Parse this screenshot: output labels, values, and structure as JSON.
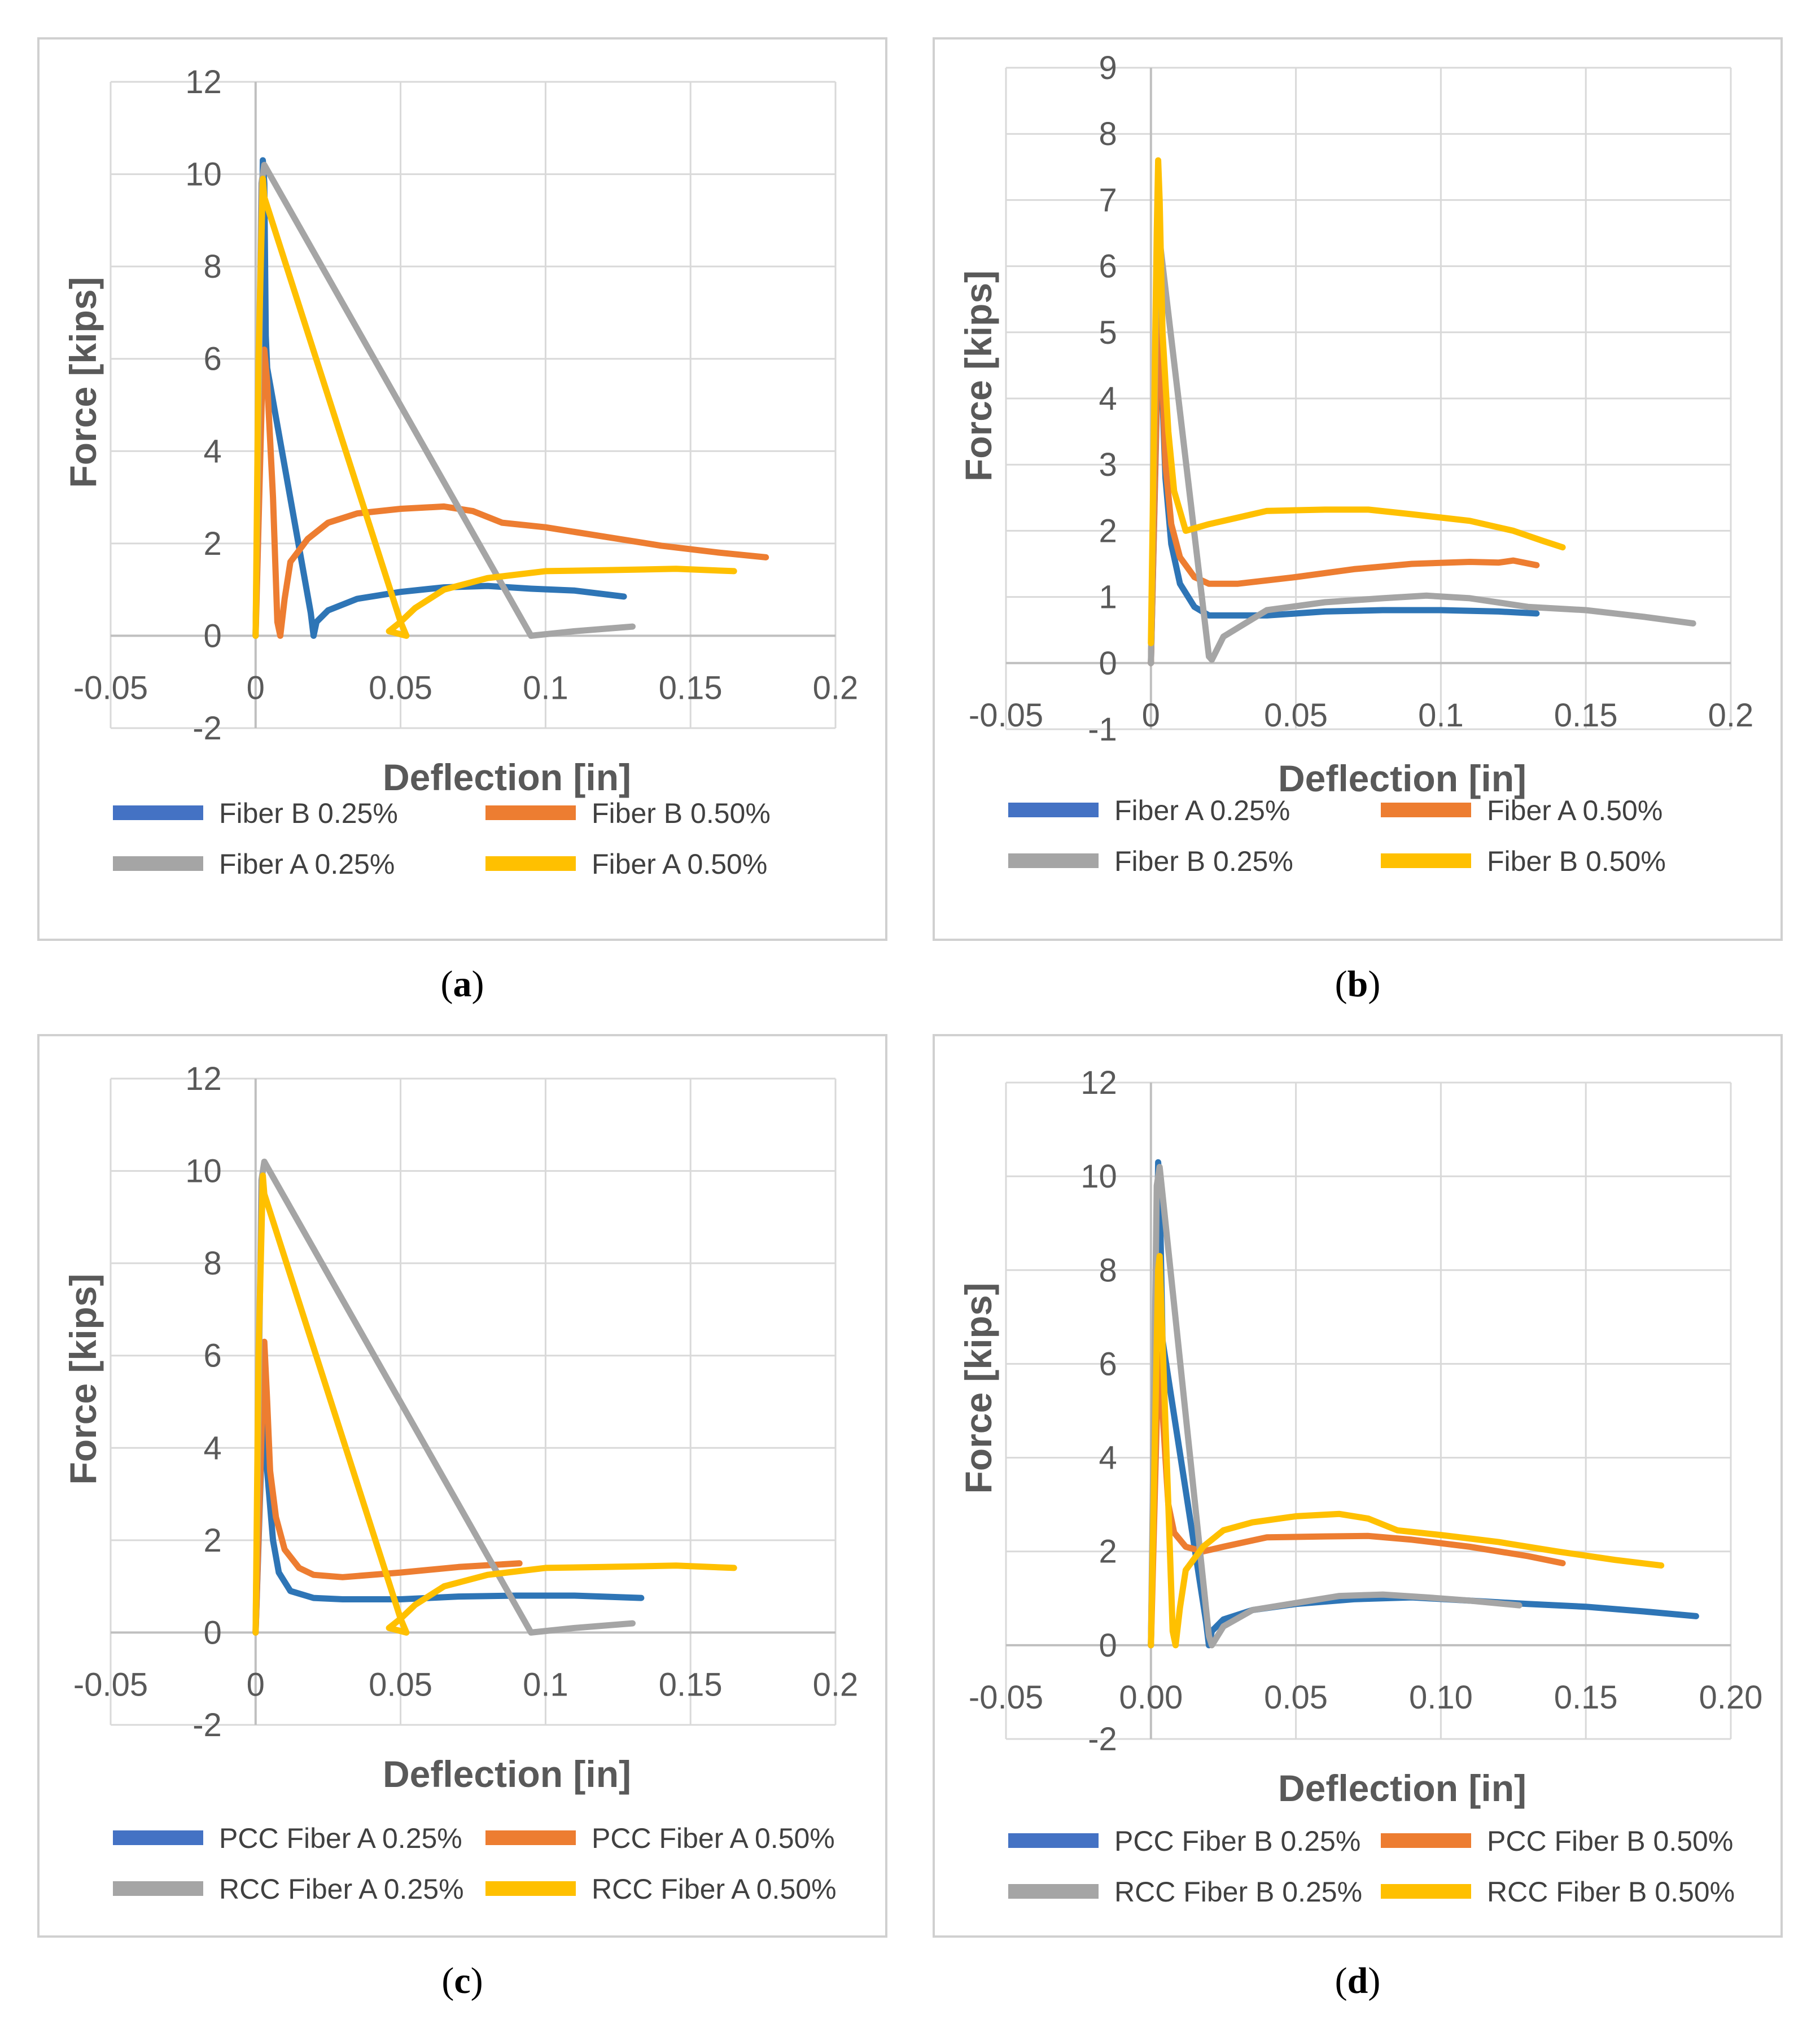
{
  "colors": {
    "blue": "#4472C4",
    "orange": "#ED7D31",
    "gray": "#A5A5A5",
    "yellow": "#FFC000",
    "grid": "#d9d9d9",
    "axis": "#bfbfbf"
  },
  "chart_data": [
    {
      "panel_id": "a",
      "caption": "a",
      "type": "line",
      "xlabel": "Deflection [in]",
      "ylabel": "Force [kips]",
      "xlim": [
        -0.05,
        0.2
      ],
      "ylim": [
        -2,
        12
      ],
      "xticks": [
        -0.05,
        0,
        0.05,
        0.1,
        0.15,
        0.2
      ],
      "xtick_labels": [
        "-0.05",
        "0",
        "0.05",
        "0.1",
        "0.15",
        "0.2"
      ],
      "yticks": [
        -2,
        0,
        2,
        4,
        6,
        8,
        10,
        12
      ],
      "ytick_labels": [
        "-2",
        "0",
        "2",
        "4",
        "6",
        "8",
        "10",
        "12"
      ],
      "grid": true,
      "legend_position": "bottom",
      "series": [
        {
          "name": "Fiber B 0.25%",
          "color": "#4472C4",
          "line": "#2E75B6",
          "x": [
            0,
            0.002,
            0.0025,
            0.003,
            0.0035,
            0.004,
            0.019,
            0.02,
            0.021,
            0.025,
            0.035,
            0.05,
            0.065,
            0.08,
            0.095,
            0.11,
            0.127
          ],
          "y": [
            0,
            8,
            10.3,
            9.8,
            6.5,
            5.8,
            0.5,
            0,
            0.3,
            0.55,
            0.8,
            0.95,
            1.05,
            1.08,
            1.02,
            0.98,
            0.85
          ]
        },
        {
          "name": "Fiber B 0.50%",
          "color": "#ED7D31",
          "x": [
            0,
            0.0025,
            0.003,
            0.004,
            0.006,
            0.0075,
            0.0085,
            0.01,
            0.012,
            0.018,
            0.025,
            0.035,
            0.05,
            0.065,
            0.075,
            0.085,
            0.1,
            0.12,
            0.14,
            0.16,
            0.176
          ],
          "y": [
            0,
            6,
            6.2,
            5.5,
            3.0,
            0.3,
            0.0,
            0.8,
            1.6,
            2.1,
            2.45,
            2.65,
            2.75,
            2.8,
            2.7,
            2.45,
            2.35,
            2.15,
            1.95,
            1.8,
            1.7
          ]
        },
        {
          "name": "Fiber A 0.25%",
          "color": "#A5A5A5",
          "x": [
            0,
            0.002,
            0.003,
            0.095,
            0.11,
            0.13
          ],
          "y": [
            0,
            9.8,
            10.2,
            0,
            0.1,
            0.2
          ]
        },
        {
          "name": "Fiber A 0.50%",
          "color": "#FFC000",
          "x": [
            0,
            0.001,
            0.0025,
            0.003,
            0.05,
            0.052,
            0.046,
            0.05,
            0.055,
            0.065,
            0.08,
            0.1,
            0.12,
            0.145,
            0.165
          ],
          "y": [
            0,
            6,
            9.9,
            9.5,
            0.3,
            0,
            0.1,
            0.3,
            0.6,
            1.0,
            1.25,
            1.4,
            1.42,
            1.45,
            1.4
          ]
        }
      ]
    },
    {
      "panel_id": "b",
      "caption": "b",
      "type": "line",
      "xlabel": "Deflection [in]",
      "ylabel": "Force [kips]",
      "xlim": [
        -0.05,
        0.2
      ],
      "ylim": [
        -1,
        9
      ],
      "xticks": [
        -0.05,
        0,
        0.05,
        0.1,
        0.15,
        0.2
      ],
      "xtick_labels": [
        "-0.05",
        "0",
        "0.05",
        "0.1",
        "0.15",
        "0.2"
      ],
      "yticks": [
        -1,
        0,
        1,
        2,
        3,
        4,
        5,
        6,
        7,
        8,
        9
      ],
      "ytick_labels": [
        "-1",
        "0",
        "1",
        "2",
        "3",
        "4",
        "5",
        "6",
        "7",
        "8",
        "9"
      ],
      "grid": true,
      "legend_position": "bottom",
      "series": [
        {
          "name": "Fiber A 0.25%",
          "color": "#4472C4",
          "line": "#2E75B6",
          "x": [
            0,
            0.003,
            0.004,
            0.005,
            0.007,
            0.01,
            0.015,
            0.02,
            0.04,
            0.06,
            0.08,
            0.1,
            0.12,
            0.133
          ],
          "y": [
            0,
            5.8,
            4.0,
            2.8,
            1.8,
            1.2,
            0.85,
            0.72,
            0.72,
            0.78,
            0.8,
            0.8,
            0.78,
            0.75
          ]
        },
        {
          "name": "Fiber A 0.50%",
          "color": "#ED7D31",
          "x": [
            0,
            0.003,
            0.004,
            0.005,
            0.007,
            0.01,
            0.015,
            0.02,
            0.03,
            0.05,
            0.07,
            0.09,
            0.11,
            0.12,
            0.125,
            0.133
          ],
          "y": [
            0,
            6.0,
            4.2,
            3.0,
            2.1,
            1.6,
            1.3,
            1.2,
            1.2,
            1.3,
            1.42,
            1.5,
            1.53,
            1.52,
            1.55,
            1.48
          ]
        },
        {
          "name": "Fiber B 0.25%",
          "color": "#A5A5A5",
          "x": [
            0,
            0.002,
            0.003,
            0.02,
            0.021,
            0.025,
            0.04,
            0.06,
            0.08,
            0.095,
            0.11,
            0.13,
            0.15,
            0.17,
            0.187
          ],
          "y": [
            0,
            6.2,
            6.4,
            0.1,
            0.05,
            0.4,
            0.8,
            0.92,
            0.98,
            1.02,
            0.98,
            0.85,
            0.8,
            0.7,
            0.6
          ]
        },
        {
          "name": "Fiber B 0.50%",
          "color": "#FFC000",
          "x": [
            0,
            0.002,
            0.0025,
            0.003,
            0.004,
            0.006,
            0.008,
            0.012,
            0.02,
            0.03,
            0.04,
            0.06,
            0.075,
            0.09,
            0.11,
            0.125,
            0.135,
            0.142
          ],
          "y": [
            0.3,
            6.5,
            7.6,
            7.0,
            5.0,
            3.5,
            2.6,
            2.0,
            2.1,
            2.2,
            2.3,
            2.32,
            2.32,
            2.25,
            2.15,
            2.0,
            1.85,
            1.75
          ]
        }
      ]
    },
    {
      "panel_id": "c",
      "caption": "c",
      "type": "line",
      "xlabel": "Deflection [in]",
      "ylabel": "Force [kips]",
      "xlim": [
        -0.05,
        0.2
      ],
      "ylim": [
        -2,
        12
      ],
      "xticks": [
        -0.05,
        0,
        0.05,
        0.1,
        0.15,
        0.2
      ],
      "xtick_labels": [
        "-0.05",
        "0",
        "0.05",
        "0.1",
        "0.15",
        "0.2"
      ],
      "yticks": [
        -2,
        0,
        2,
        4,
        6,
        8,
        10,
        12
      ],
      "ytick_labels": [
        "-2",
        "0",
        "2",
        "4",
        "6",
        "8",
        "10",
        "12"
      ],
      "grid": true,
      "legend_position": "bottom",
      "series": [
        {
          "name": "PCC Fiber A 0.25%",
          "color": "#4472C4",
          "line": "#2E75B6",
          "x": [
            0,
            0.003,
            0.004,
            0.006,
            0.008,
            0.012,
            0.02,
            0.03,
            0.05,
            0.07,
            0.09,
            0.11,
            0.133
          ],
          "y": [
            0,
            5.8,
            3.5,
            2.0,
            1.3,
            0.9,
            0.75,
            0.72,
            0.72,
            0.78,
            0.8,
            0.8,
            0.75
          ]
        },
        {
          "name": "PCC Fiber A 0.50%",
          "color": "#ED7D31",
          "x": [
            0,
            0.003,
            0.004,
            0.005,
            0.007,
            0.01,
            0.015,
            0.02,
            0.03,
            0.05,
            0.07,
            0.091
          ],
          "y": [
            0,
            6.3,
            5.0,
            3.5,
            2.5,
            1.8,
            1.4,
            1.25,
            1.2,
            1.3,
            1.42,
            1.5
          ]
        },
        {
          "name": "RCC Fiber A 0.25%",
          "color": "#A5A5A5",
          "x": [
            0,
            0.002,
            0.003,
            0.095,
            0.11,
            0.13
          ],
          "y": [
            0,
            9.8,
            10.2,
            0,
            0.1,
            0.2
          ]
        },
        {
          "name": "RCC Fiber A 0.50%",
          "color": "#FFC000",
          "x": [
            0,
            0.001,
            0.0025,
            0.003,
            0.05,
            0.052,
            0.046,
            0.05,
            0.055,
            0.065,
            0.08,
            0.1,
            0.12,
            0.145,
            0.165
          ],
          "y": [
            0,
            6,
            9.9,
            9.5,
            0.3,
            0,
            0.1,
            0.3,
            0.6,
            1.0,
            1.25,
            1.4,
            1.42,
            1.45,
            1.4
          ]
        }
      ]
    },
    {
      "panel_id": "d",
      "caption": "d",
      "type": "line",
      "xlabel": "Deflection [in]",
      "ylabel": "Force [kips]",
      "xlim": [
        -0.05,
        0.2
      ],
      "ylim": [
        -2,
        12
      ],
      "xticks": [
        -0.05,
        0,
        0.05,
        0.1,
        0.15,
        0.2
      ],
      "xtick_labels": [
        "-0.05",
        "0.00",
        "0.05",
        "0.10",
        "0.15",
        "0.20"
      ],
      "yticks": [
        -2,
        0,
        2,
        4,
        6,
        8,
        10,
        12
      ],
      "ytick_labels": [
        "-2",
        "0",
        "2",
        "4",
        "6",
        "8",
        "10",
        "12"
      ],
      "grid": true,
      "legend_position": "bottom",
      "series": [
        {
          "name": "PCC Fiber B 0.25%",
          "color": "#4472C4",
          "line": "#2E75B6",
          "x": [
            0,
            0.002,
            0.0025,
            0.003,
            0.004,
            0.019,
            0.02,
            0.021,
            0.025,
            0.035,
            0.05,
            0.07,
            0.09,
            0.11,
            0.13,
            0.15,
            0.17,
            0.188
          ],
          "y": [
            0,
            8,
            10.3,
            9.8,
            6.5,
            0.5,
            0,
            0.3,
            0.55,
            0.75,
            0.88,
            0.98,
            1.02,
            0.95,
            0.88,
            0.82,
            0.72,
            0.62
          ]
        },
        {
          "name": "PCC Fiber B 0.50%",
          "color": "#ED7D31",
          "x": [
            0,
            0.0025,
            0.003,
            0.004,
            0.006,
            0.008,
            0.012,
            0.018,
            0.025,
            0.04,
            0.06,
            0.075,
            0.09,
            0.11,
            0.13,
            0.142
          ],
          "y": [
            0,
            6.0,
            6.2,
            5.0,
            3.0,
            2.4,
            2.1,
            2.0,
            2.1,
            2.3,
            2.32,
            2.33,
            2.25,
            2.1,
            1.9,
            1.75
          ]
        },
        {
          "name": "RCC Fiber B 0.25%",
          "color": "#A5A5A5",
          "x": [
            0,
            0.002,
            0.003,
            0.02,
            0.021,
            0.025,
            0.035,
            0.05,
            0.065,
            0.08,
            0.095,
            0.11,
            0.127
          ],
          "y": [
            0,
            9.8,
            10.2,
            0.2,
            0,
            0.4,
            0.75,
            0.9,
            1.05,
            1.08,
            1.02,
            0.95,
            0.85
          ]
        },
        {
          "name": "RCC Fiber B 0.50%",
          "color": "#FFC000",
          "x": [
            0,
            0.0025,
            0.003,
            0.004,
            0.006,
            0.0075,
            0.0085,
            0.01,
            0.012,
            0.018,
            0.025,
            0.035,
            0.05,
            0.065,
            0.075,
            0.085,
            0.1,
            0.12,
            0.14,
            0.16,
            0.176
          ],
          "y": [
            0,
            8.0,
            8.3,
            6.5,
            3.0,
            0.3,
            0.0,
            0.8,
            1.6,
            2.1,
            2.45,
            2.62,
            2.75,
            2.8,
            2.7,
            2.45,
            2.35,
            2.2,
            2.0,
            1.82,
            1.7
          ]
        }
      ]
    }
  ]
}
